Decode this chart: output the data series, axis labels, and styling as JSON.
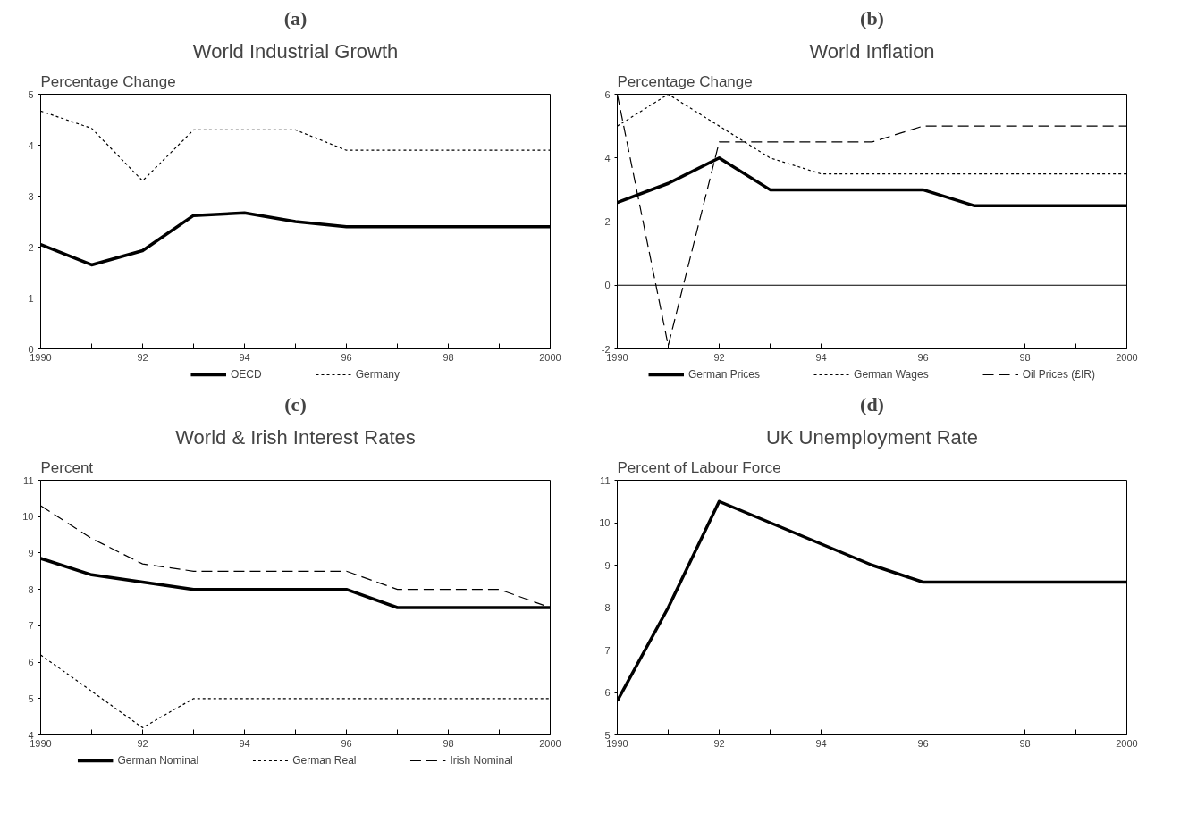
{
  "chart_data": [
    {
      "type": "line",
      "title": "(a)",
      "subtitle": "World Industrial Growth",
      "ylabel": "Percentage Change",
      "x": [
        1990,
        1991,
        1992,
        1993,
        1994,
        1995,
        1996,
        1997,
        1998,
        1999,
        2000
      ],
      "xlim": [
        1990,
        2000
      ],
      "ylim": [
        0,
        5
      ],
      "xticks": [
        1990,
        {
          "value": 1991,
          "label": null
        },
        {
          "value": 1992,
          "label": "92"
        },
        {
          "value": 1993,
          "label": null
        },
        {
          "value": 1994,
          "label": "94"
        },
        {
          "value": 1995,
          "label": null
        },
        {
          "value": 1996,
          "label": "96"
        },
        {
          "value": 1997,
          "label": null
        },
        {
          "value": 1998,
          "label": "98"
        },
        {
          "value": 1999,
          "label": null
        },
        2000
      ],
      "yticks": [
        0,
        1,
        2,
        3,
        4,
        5
      ],
      "grid": false,
      "legend": "bottom",
      "series": [
        {
          "name": "OECD",
          "color": "#000000",
          "line_style": "solid",
          "values": [
            2.05,
            1.65,
            1.93,
            2.62,
            2.67,
            2.5,
            2.4,
            2.4,
            2.4,
            2.4,
            2.4
          ]
        },
        {
          "name": "Germany",
          "color": "#000000",
          "line_style": "dotted",
          "values": [
            4.67,
            4.33,
            3.3,
            4.3,
            4.3,
            4.3,
            3.9,
            3.9,
            3.9,
            3.9,
            3.9
          ]
        }
      ]
    },
    {
      "type": "line",
      "title": "(b)",
      "subtitle": "World Inflation",
      "ylabel": "Percentage Change",
      "x": [
        1990,
        1991,
        1992,
        1993,
        1994,
        1995,
        1996,
        1997,
        1998,
        1999,
        2000
      ],
      "xlim": [
        1990,
        2000
      ],
      "ylim": [
        -2,
        6
      ],
      "xticks": [
        1990,
        {
          "value": 1991,
          "label": null
        },
        {
          "value": 1992,
          "label": "92"
        },
        {
          "value": 1993,
          "label": null
        },
        {
          "value": 1994,
          "label": "94"
        },
        {
          "value": 1995,
          "label": null
        },
        {
          "value": 1996,
          "label": "96"
        },
        {
          "value": 1997,
          "label": null
        },
        {
          "value": 1998,
          "label": "98"
        },
        {
          "value": 1999,
          "label": null
        },
        2000
      ],
      "yticks": [
        -2,
        0,
        2,
        4,
        6
      ],
      "grid": false,
      "legend": "bottom",
      "ref_lines": [
        {
          "axis": "y",
          "value": 0,
          "color": "#000000"
        }
      ],
      "series": [
        {
          "name": "German Prices",
          "color": "#000000",
          "line_style": "solid",
          "values": [
            2.6,
            3.2,
            4.0,
            3.0,
            3.0,
            3.0,
            3.0,
            2.5,
            2.5,
            2.5,
            2.5
          ]
        },
        {
          "name": "German Wages",
          "color": "#000000",
          "line_style": "dotted",
          "values": [
            5.0,
            6.0,
            5.0,
            4.0,
            3.5,
            3.5,
            3.5,
            3.5,
            3.5,
            3.5,
            3.5
          ]
        },
        {
          "name": "Oil Prices (£IR)",
          "color": "#000000",
          "line_style": "dashed",
          "values": [
            6.0,
            -1.9,
            4.5,
            4.5,
            4.5,
            4.5,
            5.0,
            5.0,
            5.0,
            5.0,
            5.0
          ]
        }
      ]
    },
    {
      "type": "line",
      "title": "(c)",
      "subtitle": "World & Irish Interest Rates",
      "ylabel": "Percent",
      "x": [
        1990,
        1991,
        1992,
        1993,
        1994,
        1995,
        1996,
        1997,
        1998,
        1999,
        2000
      ],
      "xlim": [
        1990,
        2000
      ],
      "ylim": [
        4,
        11
      ],
      "xticks": [
        1990,
        {
          "value": 1991,
          "label": null
        },
        {
          "value": 1992,
          "label": "92"
        },
        {
          "value": 1993,
          "label": null
        },
        {
          "value": 1994,
          "label": "94"
        },
        {
          "value": 1995,
          "label": null
        },
        {
          "value": 1996,
          "label": "96"
        },
        {
          "value": 1997,
          "label": null
        },
        {
          "value": 1998,
          "label": "98"
        },
        {
          "value": 1999,
          "label": null
        },
        2000
      ],
      "yticks": [
        4,
        5,
        6,
        7,
        8,
        9,
        10,
        11
      ],
      "grid": false,
      "legend": "bottom",
      "series": [
        {
          "name": "German Nominal",
          "color": "#000000",
          "line_style": "solid",
          "values": [
            8.85,
            8.4,
            8.2,
            8.0,
            8.0,
            8.0,
            8.0,
            7.5,
            7.5,
            7.5,
            7.5
          ]
        },
        {
          "name": "German Real",
          "color": "#000000",
          "line_style": "dotted",
          "values": [
            6.2,
            5.2,
            4.2,
            5.0,
            5.0,
            5.0,
            5.0,
            5.0,
            5.0,
            5.0,
            5.0
          ]
        },
        {
          "name": "Irish Nominal",
          "color": "#000000",
          "line_style": "dashed",
          "values": [
            10.3,
            9.4,
            8.7,
            8.5,
            8.5,
            8.5,
            8.5,
            8.0,
            8.0,
            8.0,
            7.5
          ]
        }
      ]
    },
    {
      "type": "line",
      "title": "(d)",
      "subtitle": "UK Unemployment Rate",
      "ylabel": "Percent of Labour Force",
      "x": [
        1990,
        1991,
        1992,
        1993,
        1994,
        1995,
        1996,
        1997,
        1998,
        1999,
        2000
      ],
      "xlim": [
        1990,
        2000
      ],
      "ylim": [
        5,
        11
      ],
      "xticks": [
        1990,
        {
          "value": 1991,
          "label": null
        },
        {
          "value": 1992,
          "label": "92"
        },
        {
          "value": 1993,
          "label": null
        },
        {
          "value": 1994,
          "label": "94"
        },
        {
          "value": 1995,
          "label": null
        },
        {
          "value": 1996,
          "label": "96"
        },
        {
          "value": 1997,
          "label": null
        },
        {
          "value": 1998,
          "label": "98"
        },
        {
          "value": 1999,
          "label": null
        },
        2000
      ],
      "yticks": [
        5,
        6,
        7,
        8,
        9,
        10,
        11
      ],
      "grid": false,
      "series": [
        {
          "color": "#000000",
          "line_style": "solid",
          "values": [
            5.8,
            8.0,
            10.5,
            10.0,
            9.5,
            9.0,
            8.6,
            8.6,
            8.6,
            8.6,
            8.6
          ]
        }
      ]
    }
  ]
}
